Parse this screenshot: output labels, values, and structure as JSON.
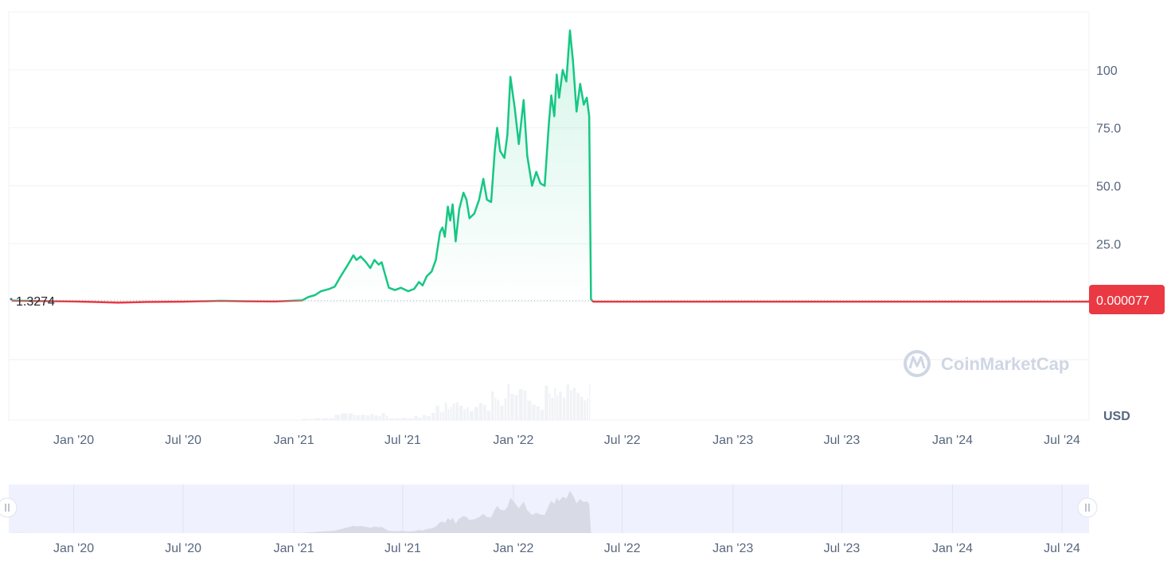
{
  "chart_data": {
    "type": "line",
    "y_ticks": [
      {
        "value": 25,
        "label": "25.0"
      },
      {
        "value": 50,
        "label": "50.0"
      },
      {
        "value": 75,
        "label": "75.0"
      },
      {
        "value": 100,
        "label": "100"
      }
    ],
    "ylim": [
      -25,
      125
    ],
    "x_ticks": [
      {
        "date": "2020-01-01",
        "label": "Jan '20"
      },
      {
        "date": "2020-07-01",
        "label": "Jul '20"
      },
      {
        "date": "2021-01-01",
        "label": "Jan '21"
      },
      {
        "date": "2021-07-01",
        "label": "Jul '21"
      },
      {
        "date": "2022-01-01",
        "label": "Jan '22"
      },
      {
        "date": "2022-07-01",
        "label": "Jul '22"
      },
      {
        "date": "2023-01-01",
        "label": "Jan '23"
      },
      {
        "date": "2023-07-01",
        "label": "Jul '23"
      },
      {
        "date": "2024-01-01",
        "label": "Jan '24"
      },
      {
        "date": "2024-07-01",
        "label": "Jul '24"
      }
    ],
    "xlim": [
      "2019-09-15",
      "2024-08-15"
    ],
    "start_price_label": "1.3274",
    "current_price_label": "0.000077",
    "currency": "USD",
    "watermark": "CoinMarketCap",
    "series": [
      {
        "color_above": "#16c784",
        "color_below": "#ea3943",
        "points": [
          [
            "2019-09-20",
            0.5
          ],
          [
            "2019-11-01",
            0.3
          ],
          [
            "2020-01-01",
            0.1
          ],
          [
            "2020-03-15",
            -0.4
          ],
          [
            "2020-05-01",
            -0.1
          ],
          [
            "2020-07-01",
            0.0
          ],
          [
            "2020-09-01",
            0.4
          ],
          [
            "2020-10-15",
            0.2
          ],
          [
            "2020-12-01",
            0.1
          ],
          [
            "2021-01-15",
            0.6
          ],
          [
            "2021-01-25",
            2.0
          ],
          [
            "2021-02-05",
            2.8
          ],
          [
            "2021-02-15",
            4.5
          ],
          [
            "2021-03-01",
            5.5
          ],
          [
            "2021-03-10",
            6.5
          ],
          [
            "2021-03-20",
            11.0
          ],
          [
            "2021-04-01",
            16.0
          ],
          [
            "2021-04-10",
            20.0
          ],
          [
            "2021-04-15",
            18.0
          ],
          [
            "2021-04-22",
            19.5
          ],
          [
            "2021-05-01",
            17.0
          ],
          [
            "2021-05-08",
            14.5
          ],
          [
            "2021-05-15",
            18.0
          ],
          [
            "2021-05-22",
            16.0
          ],
          [
            "2021-05-27",
            17.0
          ],
          [
            "2021-06-03",
            10.5
          ],
          [
            "2021-06-08",
            6.0
          ],
          [
            "2021-06-18",
            5.0
          ],
          [
            "2021-06-28",
            6.0
          ],
          [
            "2021-07-10",
            4.5
          ],
          [
            "2021-07-20",
            5.5
          ],
          [
            "2021-07-28",
            8.5
          ],
          [
            "2021-08-03",
            7.0
          ],
          [
            "2021-08-10",
            11.0
          ],
          [
            "2021-08-18",
            13.0
          ],
          [
            "2021-08-25",
            18.0
          ],
          [
            "2021-09-01",
            30.0
          ],
          [
            "2021-09-05",
            32.0
          ],
          [
            "2021-09-09",
            28.0
          ],
          [
            "2021-09-14",
            41.0
          ],
          [
            "2021-09-18",
            35.0
          ],
          [
            "2021-09-22",
            42.0
          ],
          [
            "2021-09-27",
            26.0
          ],
          [
            "2021-10-03",
            40.0
          ],
          [
            "2021-10-10",
            47.0
          ],
          [
            "2021-10-15",
            44.0
          ],
          [
            "2021-10-20",
            36.0
          ],
          [
            "2021-10-28",
            38.0
          ],
          [
            "2021-11-05",
            44.0
          ],
          [
            "2021-11-12",
            53.0
          ],
          [
            "2021-11-18",
            44.0
          ],
          [
            "2021-11-25",
            43.0
          ],
          [
            "2021-12-01",
            65.0
          ],
          [
            "2021-12-05",
            75.0
          ],
          [
            "2021-12-10",
            65.0
          ],
          [
            "2021-12-17",
            62.0
          ],
          [
            "2021-12-22",
            72.0
          ],
          [
            "2021-12-27",
            97.0
          ],
          [
            "2022-01-03",
            84.0
          ],
          [
            "2022-01-10",
            68.0
          ],
          [
            "2022-01-18",
            87.0
          ],
          [
            "2022-01-24",
            63.0
          ],
          [
            "2022-02-01",
            50.0
          ],
          [
            "2022-02-08",
            56.0
          ],
          [
            "2022-02-15",
            51.0
          ],
          [
            "2022-02-22",
            50.0
          ],
          [
            "2022-03-01",
            77.0
          ],
          [
            "2022-03-05",
            89.0
          ],
          [
            "2022-03-10",
            80.0
          ],
          [
            "2022-03-14",
            98.0
          ],
          [
            "2022-03-18",
            88.0
          ],
          [
            "2022-03-24",
            100.0
          ],
          [
            "2022-03-30",
            95.0
          ],
          [
            "2022-04-05",
            117.0
          ],
          [
            "2022-04-10",
            104.0
          ],
          [
            "2022-04-16",
            82.0
          ],
          [
            "2022-04-22",
            94.0
          ],
          [
            "2022-04-28",
            85.0
          ],
          [
            "2022-05-03",
            88.0
          ],
          [
            "2022-05-07",
            80.0
          ],
          [
            "2022-05-10",
            1.0
          ],
          [
            "2022-05-14",
            0.0001
          ],
          [
            "2022-08-01",
            0.0001
          ],
          [
            "2023-01-01",
            0.0001
          ],
          [
            "2023-07-01",
            0.0001
          ],
          [
            "2024-01-01",
            0.0001
          ],
          [
            "2024-08-15",
            7.7e-05
          ]
        ]
      }
    ],
    "navigator": {
      "xlim": [
        "2019-09-15",
        "2024-08-15"
      ]
    }
  }
}
